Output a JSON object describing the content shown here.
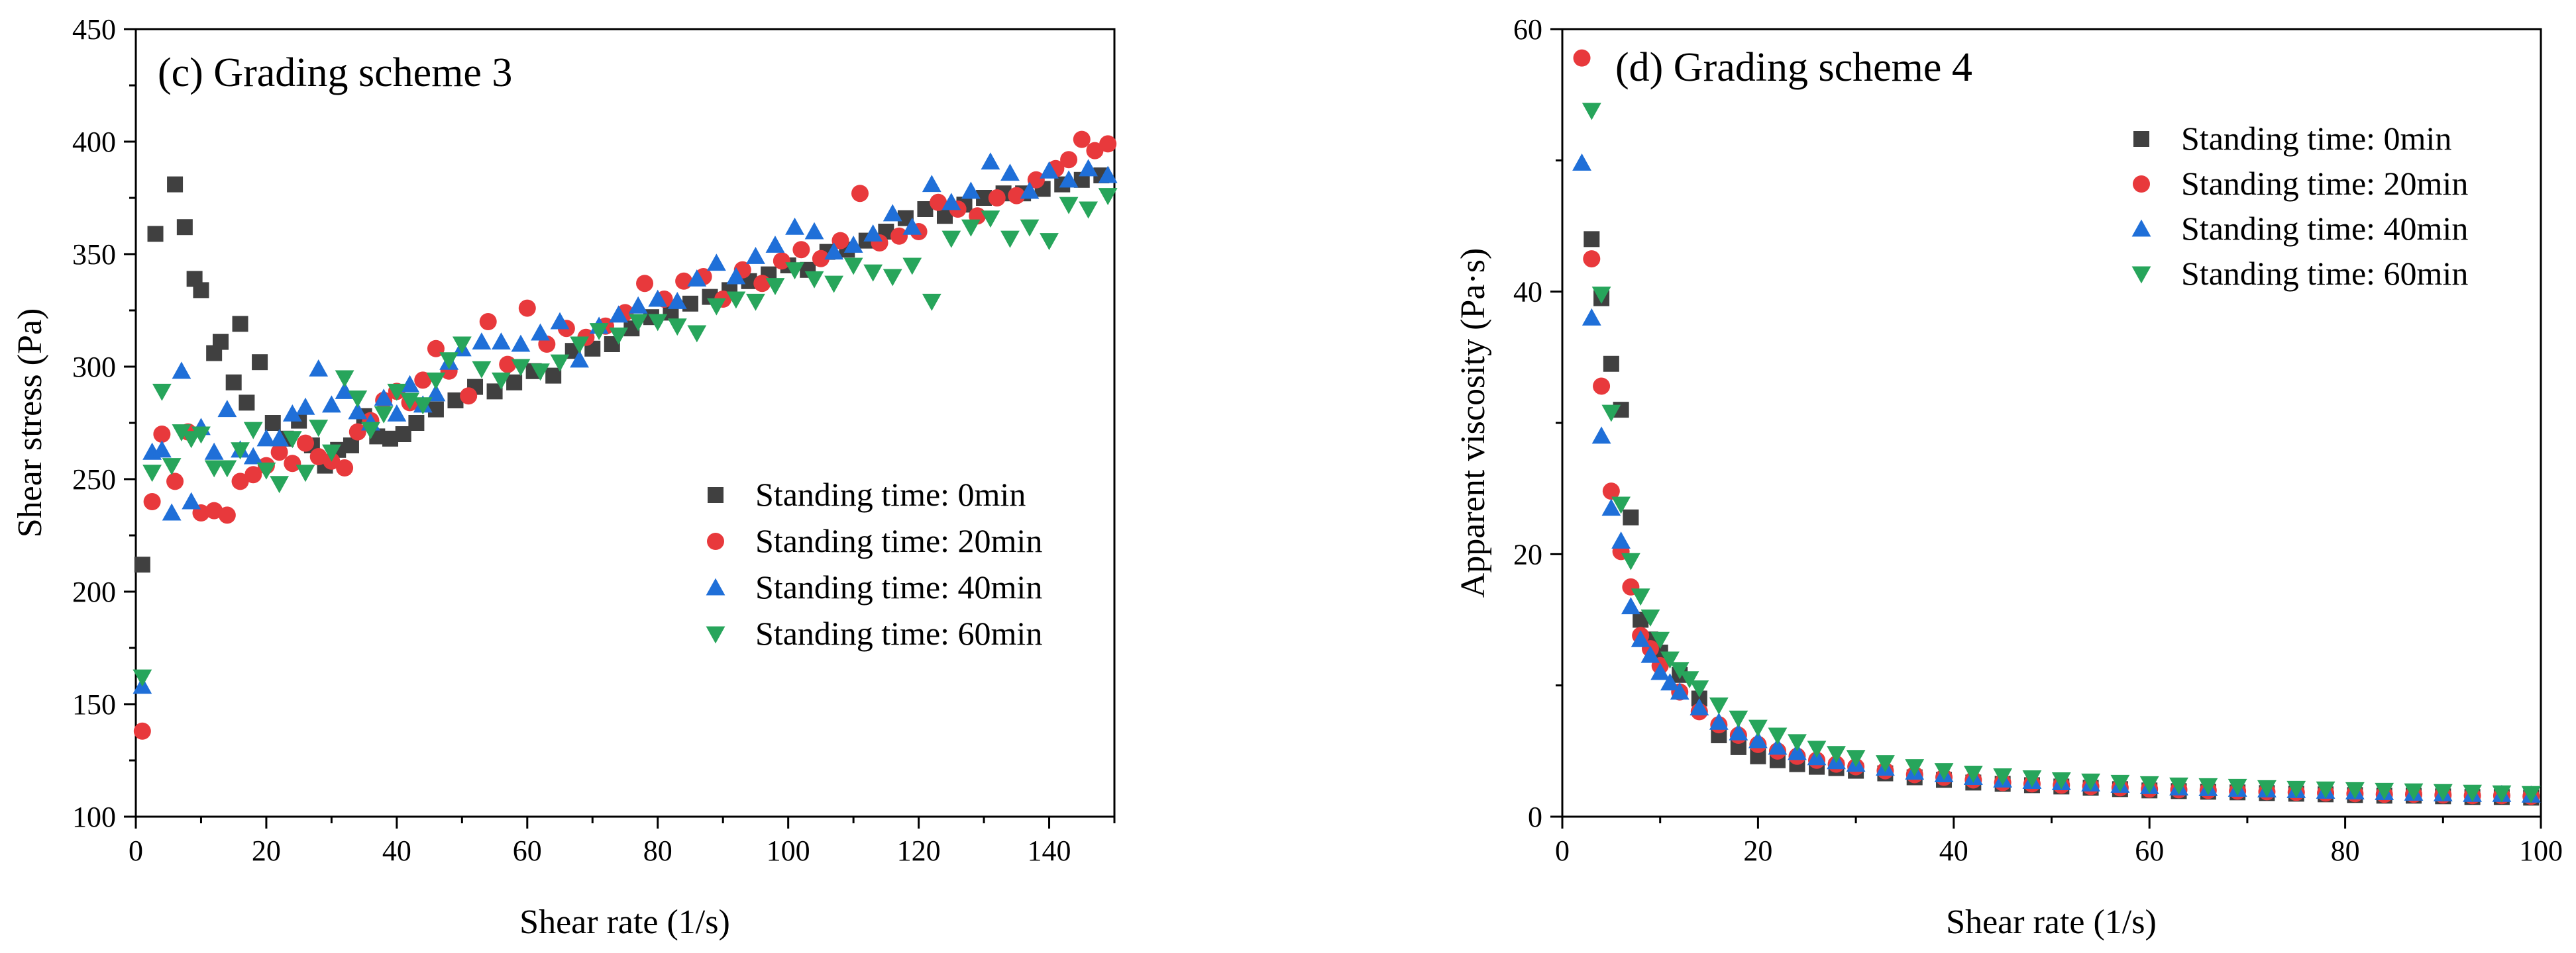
{
  "charts": [
    {
      "title": "(c)  Grading scheme 3",
      "xlabel": "Shear rate (1/s)",
      "ylabel": "Shear stress (Pa)"
    },
    {
      "title": "(d) Grading scheme 4",
      "xlabel": "Shear rate (1/s)",
      "ylabel": "Apparent viscosity (Pa·s)"
    }
  ],
  "series_style": [
    {
      "marker": "square",
      "color": "#404040"
    },
    {
      "marker": "circle",
      "color": "#e8393c"
    },
    {
      "marker": "triangle-up",
      "color": "#1f6fd8"
    },
    {
      "marker": "triangle-down",
      "color": "#27a55b"
    }
  ],
  "chart_data": [
    {
      "type": "scatter",
      "title": "(c)  Grading scheme 3",
      "xlabel": "Shear rate (1/s)",
      "ylabel": "Shear stress (Pa)",
      "xlim": [
        0,
        150
      ],
      "ylim": [
        100,
        450
      ],
      "xticks": [
        0,
        20,
        40,
        60,
        80,
        100,
        120,
        140
      ],
      "yticks": [
        100,
        150,
        200,
        250,
        300,
        350,
        400,
        450
      ],
      "grid": false,
      "legend_position": "center-right",
      "series": [
        {
          "name": "Standing time: 0min",
          "marker": "square",
          "color": "#404040",
          "x": [
            1,
            3,
            6,
            7.5,
            9,
            10,
            12,
            13,
            15,
            16,
            17,
            19,
            21,
            23,
            25,
            27,
            29,
            31,
            33,
            35,
            37,
            39,
            41,
            43,
            46,
            49,
            52,
            55,
            58,
            61,
            64,
            67,
            70,
            73,
            76,
            79,
            82,
            85,
            88,
            91,
            94,
            97,
            100,
            103,
            106,
            109,
            112,
            115,
            118,
            121,
            124,
            127,
            130,
            133,
            136,
            139,
            142,
            145,
            148
          ],
          "y": [
            212,
            359,
            381,
            362,
            339,
            334,
            306,
            311,
            293,
            319,
            284,
            302,
            275,
            268,
            276,
            265,
            256,
            263,
            265,
            278,
            269,
            268,
            270,
            275,
            281,
            285,
            291,
            289,
            293,
            298,
            296,
            307,
            308,
            310,
            317,
            322,
            324,
            328,
            331,
            334,
            338,
            341,
            345,
            343,
            351,
            352,
            356,
            360,
            366,
            370,
            367,
            372,
            375,
            377,
            377,
            379,
            381,
            383,
            385
          ]
        },
        {
          "name": "Standing time: 20min",
          "marker": "circle",
          "color": "#e8393c",
          "x": [
            1,
            2.5,
            4,
            6,
            8,
            10,
            12,
            14,
            16,
            18,
            20,
            22,
            24,
            26,
            28,
            30,
            32,
            34,
            36,
            38,
            40,
            42,
            44,
            46,
            48,
            51,
            54,
            57,
            60,
            63,
            66,
            69,
            72,
            75,
            78,
            81,
            84,
            87,
            90,
            93,
            96,
            99,
            102,
            105,
            108,
            111,
            114,
            117,
            120,
            123,
            126,
            129,
            132,
            135,
            138,
            141,
            143,
            145,
            147,
            149
          ],
          "y": [
            138,
            240,
            270,
            249,
            271,
            235,
            236,
            234,
            249,
            252,
            256,
            262,
            257,
            266,
            260,
            258,
            255,
            271,
            276,
            285,
            289,
            284,
            294,
            308,
            298,
            287,
            320,
            301,
            326,
            310,
            317,
            313,
            318,
            324,
            337,
            330,
            338,
            340,
            330,
            343,
            337,
            347,
            352,
            348,
            356,
            377,
            355,
            358,
            360,
            373,
            370,
            367,
            375,
            376,
            383,
            388,
            392,
            401,
            396,
            399
          ]
        },
        {
          "name": "Standing time: 40min",
          "marker": "triangle-up",
          "color": "#1f6fd8",
          "x": [
            1,
            2.5,
            4,
            5.5,
            7,
            8.5,
            10,
            12,
            14,
            16,
            18,
            20,
            22,
            24,
            26,
            28,
            30,
            32,
            34,
            36,
            38,
            40,
            42,
            44,
            46,
            48,
            50,
            53,
            56,
            59,
            62,
            65,
            68,
            71,
            74,
            77,
            80,
            83,
            86,
            89,
            92,
            95,
            98,
            101,
            104,
            107,
            110,
            113,
            116,
            119,
            122,
            125,
            128,
            131,
            134,
            137,
            140,
            143,
            146,
            149
          ],
          "y": [
            158,
            262,
            263,
            235,
            298,
            240,
            273,
            262,
            281,
            263,
            260,
            268,
            268,
            279,
            282,
            299,
            283,
            289,
            280,
            275,
            286,
            279,
            292,
            283,
            288,
            302,
            308,
            311,
            311,
            310,
            315,
            320,
            303,
            318,
            323,
            327,
            330,
            329,
            339,
            346,
            340,
            349,
            354,
            362,
            360,
            351,
            354,
            359,
            368,
            362,
            381,
            373,
            378,
            391,
            386,
            378,
            387,
            383,
            388,
            385
          ]
        },
        {
          "name": "Standing time: 60min",
          "marker": "triangle-down",
          "color": "#27a55b",
          "x": [
            1,
            2.5,
            4,
            5.5,
            7,
            8.5,
            10,
            12,
            14,
            16,
            18,
            20,
            22,
            24,
            26,
            28,
            30,
            32,
            34,
            36,
            38,
            40,
            42,
            44,
            46,
            48,
            50,
            53,
            56,
            59,
            62,
            65,
            68,
            71,
            74,
            77,
            80,
            83,
            86,
            89,
            92,
            95,
            98,
            101,
            104,
            107,
            110,
            113,
            116,
            119,
            122,
            125,
            128,
            131,
            134,
            137,
            140,
            143,
            146,
            149
          ],
          "y": [
            162,
            253,
            289,
            256,
            271,
            268,
            270,
            255,
            255,
            263,
            272,
            254,
            248,
            268,
            253,
            273,
            262,
            295,
            286,
            272,
            279,
            289,
            285,
            283,
            294,
            303,
            310,
            299,
            294,
            300,
            298,
            302,
            310,
            316,
            314,
            320,
            320,
            318,
            315,
            327,
            330,
            329,
            336,
            343,
            339,
            337,
            345,
            342,
            340,
            345,
            329,
            357,
            362,
            366,
            357,
            362,
            356,
            372,
            370,
            376
          ]
        }
      ]
    },
    {
      "type": "scatter",
      "title": "(d) Grading scheme 4",
      "xlabel": "Shear rate (1/s)",
      "ylabel": "Apparent viscosity (Pa·s)",
      "xlim": [
        0,
        100
      ],
      "ylim": [
        0,
        60
      ],
      "xticks": [
        0,
        20,
        40,
        60,
        80,
        100
      ],
      "yticks": [
        0,
        20,
        40,
        60
      ],
      "grid": false,
      "legend_position": "top-right",
      "series": [
        {
          "name": "Standing time: 0min",
          "marker": "square",
          "color": "#404040",
          "x": [
            3,
            4,
            5,
            6,
            7,
            8,
            9,
            10,
            12,
            14,
            16,
            18,
            20,
            22,
            24,
            26,
            28,
            30,
            33,
            36,
            39,
            42,
            45,
            48,
            51,
            54,
            57,
            60,
            63,
            66,
            69,
            72,
            75,
            78,
            81,
            84,
            87,
            90,
            93,
            96,
            99
          ],
          "y": [
            44,
            39.5,
            34.5,
            31,
            22.8,
            15,
            13.5,
            12.5,
            10.8,
            9,
            6.2,
            5.3,
            4.6,
            4.3,
            4.0,
            3.8,
            3.7,
            3.5,
            3.3,
            3.0,
            2.8,
            2.6,
            2.5,
            2.4,
            2.3,
            2.2,
            2.1,
            2.0,
            1.95,
            1.9,
            1.85,
            1.8,
            1.75,
            1.7,
            1.65,
            1.6,
            1.6,
            1.55,
            1.5,
            1.5,
            1.45
          ]
        },
        {
          "name": "Standing time: 20min",
          "marker": "circle",
          "color": "#e8393c",
          "x": [
            2,
            3,
            4,
            5,
            6,
            7,
            8,
            9,
            10,
            12,
            14,
            16,
            18,
            20,
            22,
            24,
            26,
            28,
            30,
            33,
            36,
            39,
            42,
            45,
            48,
            51,
            54,
            57,
            60,
            63,
            66,
            69,
            72,
            75,
            78,
            81,
            84,
            87,
            90,
            93,
            96,
            99
          ],
          "y": [
            57.8,
            42.5,
            32.8,
            24.8,
            20.2,
            17.5,
            13.8,
            12.8,
            11.5,
            9.5,
            8.0,
            7.0,
            6.2,
            5.5,
            5.0,
            4.6,
            4.3,
            4.0,
            3.8,
            3.5,
            3.2,
            3.0,
            2.8,
            2.6,
            2.5,
            2.4,
            2.3,
            2.2,
            2.1,
            2.05,
            2.0,
            1.95,
            1.9,
            1.85,
            1.8,
            1.75,
            1.7,
            1.7,
            1.65,
            1.6,
            1.6,
            1.55
          ]
        },
        {
          "name": "Standing time: 40min",
          "marker": "triangle-up",
          "color": "#1f6fd8",
          "x": [
            2,
            3,
            4,
            5,
            6,
            7,
            8,
            9,
            10,
            11,
            12,
            14,
            16,
            18,
            20,
            22,
            24,
            26,
            28,
            30,
            33,
            36,
            39,
            42,
            45,
            48,
            51,
            54,
            57,
            60,
            63,
            66,
            69,
            72,
            75,
            78,
            81,
            84,
            87,
            90,
            93,
            96,
            99
          ],
          "y": [
            49.8,
            38,
            29,
            23.5,
            21,
            16,
            13.5,
            12.3,
            11.0,
            10.2,
            9.5,
            8.3,
            7.2,
            6.4,
            5.8,
            5.3,
            4.9,
            4.5,
            4.2,
            4.0,
            3.7,
            3.4,
            3.2,
            3.0,
            2.8,
            2.7,
            2.6,
            2.5,
            2.4,
            2.3,
            2.2,
            2.15,
            2.1,
            2.05,
            2.0,
            1.95,
            1.9,
            1.85,
            1.8,
            1.75,
            1.7,
            1.7,
            1.65
          ]
        },
        {
          "name": "Standing time: 60min",
          "marker": "triangle-down",
          "color": "#27a55b",
          "x": [
            3,
            4,
            5,
            6,
            7,
            8,
            9,
            10,
            11,
            12,
            13,
            14,
            16,
            18,
            20,
            22,
            24,
            26,
            28,
            30,
            33,
            36,
            39,
            42,
            45,
            48,
            51,
            54,
            57,
            60,
            63,
            66,
            69,
            72,
            75,
            78,
            81,
            84,
            87,
            90,
            93,
            96,
            99
          ],
          "y": [
            53.8,
            39.8,
            30.8,
            23.8,
            19.5,
            16.8,
            15.2,
            13.5,
            12.0,
            11.2,
            10.5,
            9.8,
            8.5,
            7.5,
            6.8,
            6.2,
            5.7,
            5.2,
            4.8,
            4.5,
            4.1,
            3.8,
            3.5,
            3.3,
            3.1,
            2.95,
            2.8,
            2.7,
            2.6,
            2.5,
            2.4,
            2.35,
            2.3,
            2.2,
            2.15,
            2.1,
            2.05,
            2.0,
            1.95,
            1.9,
            1.85,
            1.8,
            1.75
          ]
        }
      ]
    }
  ]
}
